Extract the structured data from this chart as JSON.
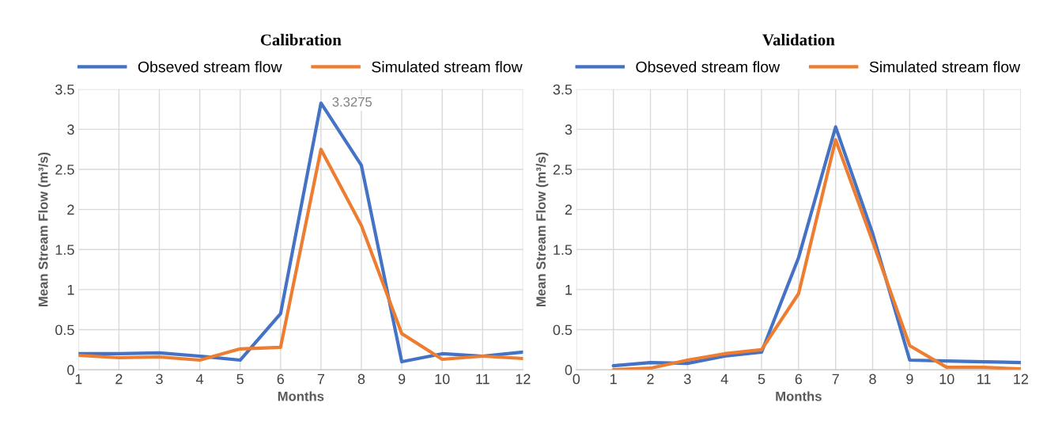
{
  "chart_data": [
    {
      "type": "line",
      "title": "Calibration",
      "xlabel": "Months",
      "ylabel": "Mean Stream Flow (m³/s)",
      "x": [
        1,
        2,
        3,
        4,
        5,
        6,
        7,
        8,
        9,
        10,
        11,
        12
      ],
      "xlim": [
        1,
        12
      ],
      "xticks": [
        1,
        2,
        3,
        4,
        5,
        6,
        7,
        8,
        9,
        10,
        11,
        12
      ],
      "ylim": [
        0,
        3.5
      ],
      "yticks": [
        0,
        0.5,
        1,
        1.5,
        2,
        2.5,
        3,
        3.5
      ],
      "grid": true,
      "legend": "top",
      "marker": "none",
      "line_style": "solid",
      "series": [
        {
          "name": "Obseved stream flow",
          "color": "#4472c4",
          "values": [
            0.2,
            0.2,
            0.21,
            0.17,
            0.12,
            0.7,
            3.3275,
            2.55,
            0.1,
            0.2,
            0.17,
            0.22
          ],
          "value_labels": [
            null,
            null,
            null,
            null,
            null,
            null,
            "3.3275",
            null,
            null,
            null,
            null,
            null
          ]
        },
        {
          "name": "Simulated stream flow",
          "color": "#ed7d31",
          "values": [
            0.18,
            0.15,
            0.16,
            0.12,
            0.26,
            0.28,
            2.75,
            1.8,
            0.45,
            0.13,
            0.17,
            0.14
          ]
        }
      ]
    },
    {
      "type": "line",
      "title": "Validation",
      "xlabel": "Months",
      "ylabel": "Mean Stream Flow (m³/s)",
      "x": [
        1,
        2,
        3,
        4,
        5,
        6,
        7,
        8,
        9,
        10,
        11,
        12
      ],
      "xlim": [
        0,
        12
      ],
      "xticks": [
        0,
        1,
        2,
        3,
        4,
        5,
        6,
        7,
        8,
        9,
        10,
        11,
        12
      ],
      "ylim": [
        0,
        3.5
      ],
      "yticks": [
        0,
        0.5,
        1,
        1.5,
        2,
        2.5,
        3,
        3.5
      ],
      "grid": true,
      "legend": "top",
      "marker": "none",
      "line_style": "solid",
      "series": [
        {
          "name": "Obseved stream flow",
          "color": "#4472c4",
          "values": [
            0.05,
            0.09,
            0.08,
            0.17,
            0.22,
            1.4,
            3.03,
            1.7,
            0.12,
            0.11,
            0.1,
            0.09
          ]
        },
        {
          "name": "Simulated stream flow",
          "color": "#ed7d31",
          "values": [
            0.0,
            0.02,
            0.12,
            0.2,
            0.25,
            0.95,
            2.87,
            1.6,
            0.3,
            0.03,
            0.03,
            0.01
          ]
        }
      ]
    }
  ]
}
